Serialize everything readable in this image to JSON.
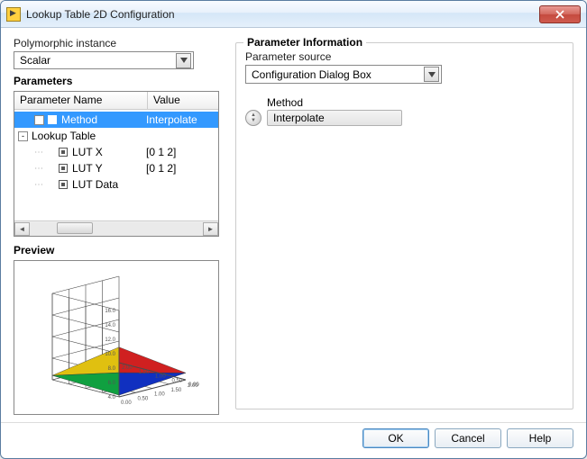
{
  "window": {
    "title": "Lookup Table 2D Configuration"
  },
  "left": {
    "polymorphic_label": "Polymorphic instance",
    "polymorphic_value": "Scalar",
    "parameters_title": "Parameters",
    "col_name": "Parameter Name",
    "col_value": "Value",
    "tree": [
      {
        "level": 1,
        "expander": "-",
        "icon": true,
        "name": "Method",
        "value": "Interpolate",
        "selected": true
      },
      {
        "level": 0,
        "expander": "-",
        "icon": false,
        "name": "Lookup Table",
        "value": "",
        "selected": false
      },
      {
        "level": 1,
        "expander": "",
        "icon": true,
        "name": "LUT X",
        "value": "[0 1 2]",
        "selected": false
      },
      {
        "level": 1,
        "expander": "",
        "icon": true,
        "name": "LUT Y",
        "value": "[0 1 2]",
        "selected": false
      },
      {
        "level": 1,
        "expander": "",
        "icon": true,
        "name": "LUT Data",
        "value": "",
        "selected": false
      }
    ],
    "preview_title": "Preview",
    "preview": {
      "grid_color": "#4a4a4a",
      "surface_colors": [
        "#1030c0",
        "#10a040",
        "#e0c010",
        "#d02020"
      ],
      "z_ticks": [
        "4.0",
        "6.0",
        "8.0",
        "10.0",
        "12.0",
        "14.0",
        "16.0"
      ],
      "xy_ticks": [
        "0.00",
        "0.50",
        "1.00",
        "1.50",
        "2.00"
      ]
    }
  },
  "right": {
    "group_title": "Parameter Information",
    "source_label": "Parameter source",
    "source_value": "Configuration Dialog Box",
    "method_label": "Method",
    "method_value": "Interpolate"
  },
  "footer": {
    "ok": "OK",
    "cancel": "Cancel",
    "help": "Help"
  }
}
